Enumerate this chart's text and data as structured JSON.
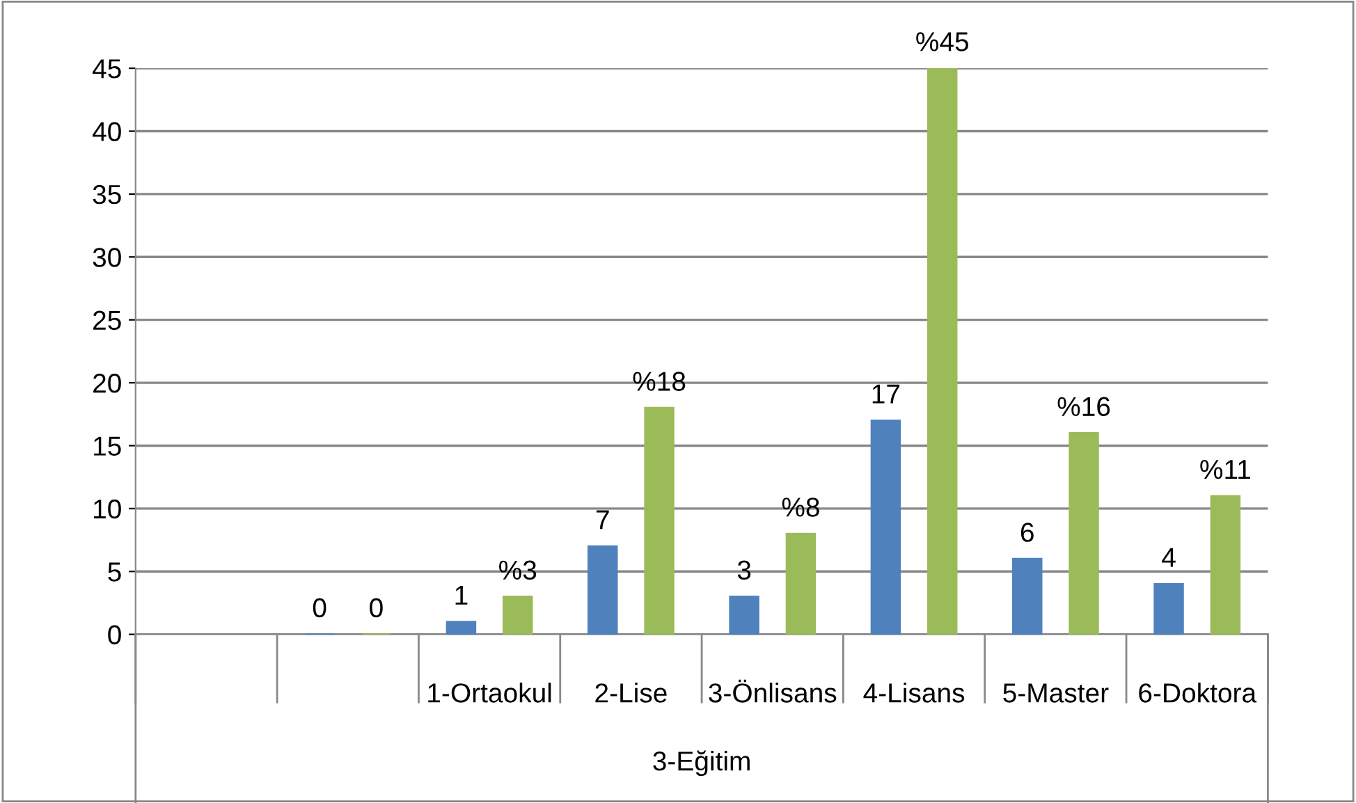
{
  "chart_data": {
    "type": "bar",
    "xlabel": "3-Eğitim",
    "categories": [
      null,
      null,
      "1-Ortaokul",
      "2-Lise",
      "3-Önlisans",
      "4-Lisans",
      "5-Master",
      "6-Doktora"
    ],
    "series": [
      {
        "color": "#4f81bd",
        "values": [
          null,
          0,
          1,
          7,
          3,
          17,
          6,
          4
        ],
        "value_labels": [
          null,
          "0",
          "1",
          "7",
          "3",
          "17",
          "6",
          "4"
        ]
      },
      {
        "color": "#9bbb59",
        "values": [
          null,
          0,
          3,
          18,
          8,
          45,
          16,
          11
        ],
        "value_labels": [
          null,
          "0",
          "%3",
          "%18",
          "%8",
          "%45",
          "%16",
          "%11"
        ]
      }
    ],
    "ylim": [
      0,
      45
    ],
    "yticks": [
      0,
      5,
      10,
      15,
      20,
      25,
      30,
      35,
      40,
      45
    ],
    "grid": "y",
    "legend": false
  }
}
